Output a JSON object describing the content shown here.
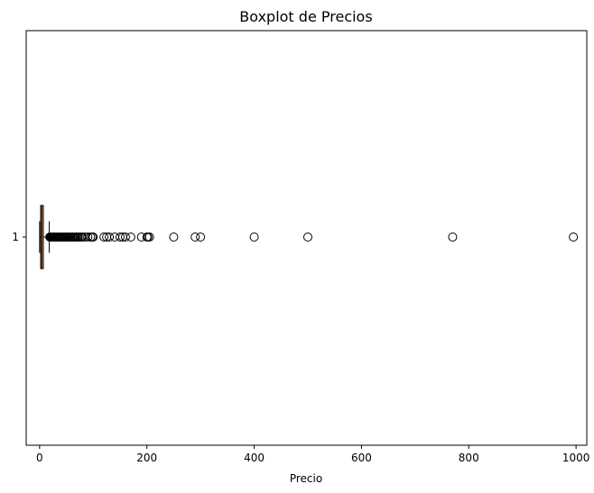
{
  "chart_data": {
    "type": "boxplot",
    "title": "Boxplot de Precios",
    "xlabel": "Precio",
    "ylabel": "",
    "orientation": "horizontal",
    "xlim": [
      -25,
      1020
    ],
    "x_ticks": [
      0,
      200,
      400,
      600,
      800,
      1000
    ],
    "x_tick_labels": [
      "0",
      "200",
      "400",
      "600",
      "800",
      "1000"
    ],
    "y_tick_labels": [
      "1"
    ],
    "grid": false,
    "colors": {
      "box_fill": "#f4a460",
      "box_edge": "#000000",
      "median": "#000000",
      "whisker": "#000000",
      "outlier_edge": "#000000"
    },
    "boxes": [
      {
        "category": "1",
        "whisker_low": 0,
        "q1": 2,
        "median": 4,
        "q3": 7,
        "whisker_high": 18,
        "outliers": [
          19,
          20,
          21,
          22,
          23,
          24,
          25,
          26,
          27,
          28,
          29,
          30,
          31,
          32,
          33,
          34,
          35,
          36,
          37,
          38,
          39,
          40,
          41,
          42,
          43,
          44,
          45,
          46,
          47,
          48,
          49,
          50,
          52,
          54,
          56,
          58,
          60,
          62,
          64,
          66,
          68,
          70,
          72,
          75,
          78,
          80,
          85,
          90,
          95,
          98,
          100,
          120,
          125,
          130,
          140,
          150,
          155,
          160,
          170,
          190,
          200,
          202,
          205,
          250,
          290,
          300,
          400,
          500,
          770,
          995
        ]
      }
    ]
  }
}
